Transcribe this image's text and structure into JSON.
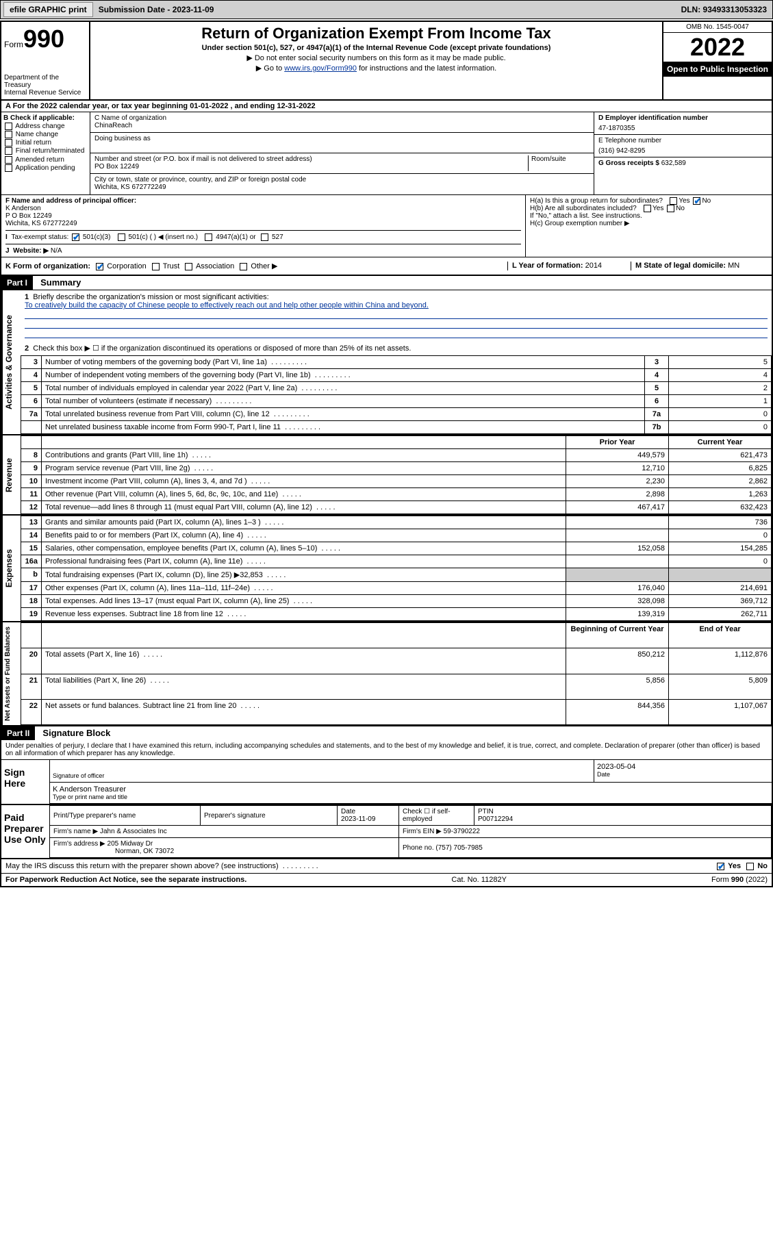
{
  "topbar": {
    "efile": "efile GRAPHIC print",
    "submission": "Submission Date - 2023-11-09",
    "dln": "DLN: 93493313053323"
  },
  "header": {
    "form_label": "Form",
    "form_num": "990",
    "dept": "Department of the Treasury",
    "irs": "Internal Revenue Service",
    "title": "Return of Organization Exempt From Income Tax",
    "sub1": "Under section 501(c), 527, or 4947(a)(1) of the Internal Revenue Code (except private foundations)",
    "sub2": "▶ Do not enter social security numbers on this form as it may be made public.",
    "sub3_pre": "▶ Go to ",
    "sub3_link": "www.irs.gov/Form990",
    "sub3_post": " for instructions and the latest information.",
    "omb": "OMB No. 1545-0047",
    "year": "2022",
    "open": "Open to Public Inspection"
  },
  "rowA": "A For the 2022 calendar year, or tax year beginning 01-01-2022   , and ending 12-31-2022",
  "B": {
    "label": "B Check if applicable:",
    "opts": [
      "Address change",
      "Name change",
      "Initial return",
      "Final return/terminated",
      "Amended return",
      "Application pending"
    ]
  },
  "C": {
    "name_label": "C Name of organization",
    "name": "ChinaReach",
    "dba_label": "Doing business as",
    "addr_label": "Number and street (or P.O. box if mail is not delivered to street address)",
    "room_label": "Room/suite",
    "addr": "PO Box 12249",
    "city_label": "City or town, state or province, country, and ZIP or foreign postal code",
    "city": "Wichita, KS  672772249"
  },
  "D": {
    "label": "D Employer identification number",
    "val": "47-1870355"
  },
  "E": {
    "label": "E Telephone number",
    "val": "(316) 942-8295"
  },
  "G": {
    "label": "G Gross receipts $",
    "val": "632,589"
  },
  "F": {
    "label": "F Name and address of principal officer:",
    "name": "K Anderson",
    "addr": "P O Box 12249",
    "city": "Wichita, KS  672772249"
  },
  "H": {
    "a": "H(a)  Is this a group return for subordinates?",
    "b": "H(b)  Are all subordinates included?",
    "note": "If \"No,\" attach a list. See instructions.",
    "c": "H(c)  Group exemption number ▶"
  },
  "I": {
    "label": "Tax-exempt status:",
    "opts": [
      "501(c)(3)",
      "501(c) (  ) ◀ (insert no.)",
      "4947(a)(1) or",
      "527"
    ]
  },
  "J": {
    "label": "Website: ▶",
    "val": "N/A"
  },
  "K": {
    "label": "K Form of organization:",
    "opts": [
      "Corporation",
      "Trust",
      "Association",
      "Other ▶"
    ]
  },
  "L": {
    "label": "L Year of formation:",
    "val": "2014"
  },
  "M": {
    "label": "M State of legal domicile:",
    "val": "MN"
  },
  "part1": {
    "hdr": "Part I",
    "title": "Summary",
    "line1_label": "Briefly describe the organization's mission or most significant activities:",
    "line1_text": "To creatively build the capacity of Chinese people to effectively reach out and help other people within China and beyond.",
    "line2": "Check this box ▶ ☐  if the organization discontinued its operations or disposed of more than 25% of its net assets.",
    "sections": {
      "gov": "Activities & Governance",
      "rev": "Revenue",
      "exp": "Expenses",
      "net": "Net Assets or Fund Balances"
    },
    "gov_rows": [
      {
        "n": "3",
        "d": "Number of voting members of the governing body (Part VI, line 1a)",
        "b": "3",
        "v": "5"
      },
      {
        "n": "4",
        "d": "Number of independent voting members of the governing body (Part VI, line 1b)",
        "b": "4",
        "v": "4"
      },
      {
        "n": "5",
        "d": "Total number of individuals employed in calendar year 2022 (Part V, line 2a)",
        "b": "5",
        "v": "2"
      },
      {
        "n": "6",
        "d": "Total number of volunteers (estimate if necessary)",
        "b": "6",
        "v": "1"
      },
      {
        "n": "7a",
        "d": "Total unrelated business revenue from Part VIII, column (C), line 12",
        "b": "7a",
        "v": "0"
      },
      {
        "n": "",
        "d": "Net unrelated business taxable income from Form 990-T, Part I, line 11",
        "b": "7b",
        "v": "0"
      }
    ],
    "col_hdrs": {
      "prior": "Prior Year",
      "current": "Current Year",
      "boy": "Beginning of Current Year",
      "eoy": "End of Year"
    },
    "rev_rows": [
      {
        "n": "8",
        "d": "Contributions and grants (Part VIII, line 1h)",
        "p": "449,579",
        "c": "621,473"
      },
      {
        "n": "9",
        "d": "Program service revenue (Part VIII, line 2g)",
        "p": "12,710",
        "c": "6,825"
      },
      {
        "n": "10",
        "d": "Investment income (Part VIII, column (A), lines 3, 4, and 7d )",
        "p": "2,230",
        "c": "2,862"
      },
      {
        "n": "11",
        "d": "Other revenue (Part VIII, column (A), lines 5, 6d, 8c, 9c, 10c, and 11e)",
        "p": "2,898",
        "c": "1,263"
      },
      {
        "n": "12",
        "d": "Total revenue—add lines 8 through 11 (must equal Part VIII, column (A), line 12)",
        "p": "467,417",
        "c": "632,423"
      }
    ],
    "exp_rows": [
      {
        "n": "13",
        "d": "Grants and similar amounts paid (Part IX, column (A), lines 1–3 )",
        "p": "",
        "c": "736"
      },
      {
        "n": "14",
        "d": "Benefits paid to or for members (Part IX, column (A), line 4)",
        "p": "",
        "c": "0"
      },
      {
        "n": "15",
        "d": "Salaries, other compensation, employee benefits (Part IX, column (A), lines 5–10)",
        "p": "152,058",
        "c": "154,285"
      },
      {
        "n": "16a",
        "d": "Professional fundraising fees (Part IX, column (A), line 11e)",
        "p": "",
        "c": "0"
      },
      {
        "n": "b",
        "d": "Total fundraising expenses (Part IX, column (D), line 25) ▶32,853",
        "p": "—",
        "c": "—"
      },
      {
        "n": "17",
        "d": "Other expenses (Part IX, column (A), lines 11a–11d, 11f–24e)",
        "p": "176,040",
        "c": "214,691"
      },
      {
        "n": "18",
        "d": "Total expenses. Add lines 13–17 (must equal Part IX, column (A), line 25)",
        "p": "328,098",
        "c": "369,712"
      },
      {
        "n": "19",
        "d": "Revenue less expenses. Subtract line 18 from line 12",
        "p": "139,319",
        "c": "262,711"
      }
    ],
    "net_rows": [
      {
        "n": "20",
        "d": "Total assets (Part X, line 16)",
        "p": "850,212",
        "c": "1,112,876"
      },
      {
        "n": "21",
        "d": "Total liabilities (Part X, line 26)",
        "p": "5,856",
        "c": "5,809"
      },
      {
        "n": "22",
        "d": "Net assets or fund balances. Subtract line 21 from line 20",
        "p": "844,356",
        "c": "1,107,067"
      }
    ]
  },
  "part2": {
    "hdr": "Part II",
    "title": "Signature Block",
    "decl": "Under penalties of perjury, I declare that I have examined this return, including accompanying schedules and statements, and to the best of my knowledge and belief, it is true, correct, and complete. Declaration of preparer (other than officer) is based on all information of which preparer has any knowledge.",
    "sign_here": "Sign Here",
    "sig_officer": "Signature of officer",
    "sig_date": "2023-05-04",
    "date_lbl": "Date",
    "officer_name": "K Anderson  Treasurer",
    "type_lbl": "Type or print name and title",
    "paid": "Paid Preparer Use Only",
    "pt_name_lbl": "Print/Type preparer's name",
    "pt_sig_lbl": "Preparer's signature",
    "pt_date_lbl": "Date",
    "pt_date": "2023-11-09",
    "pt_check": "Check ☐ if self-employed",
    "ptin_lbl": "PTIN",
    "ptin": "P00712294",
    "firm_name_lbl": "Firm's name    ▶",
    "firm_name": "Jahn & Associates Inc",
    "firm_ein_lbl": "Firm's EIN ▶",
    "firm_ein": "59-3790222",
    "firm_addr_lbl": "Firm's address ▶",
    "firm_addr": "205 Midway Dr",
    "firm_city": "Norman, OK  73072",
    "firm_phone_lbl": "Phone no.",
    "firm_phone": "(757) 705-7985",
    "may_irs": "May the IRS discuss this return with the preparer shown above? (see instructions)"
  },
  "footer": {
    "pra": "For Paperwork Reduction Act Notice, see the separate instructions.",
    "cat": "Cat. No. 11282Y",
    "form": "Form 990 (2022)"
  },
  "yes": "Yes",
  "no": "No"
}
